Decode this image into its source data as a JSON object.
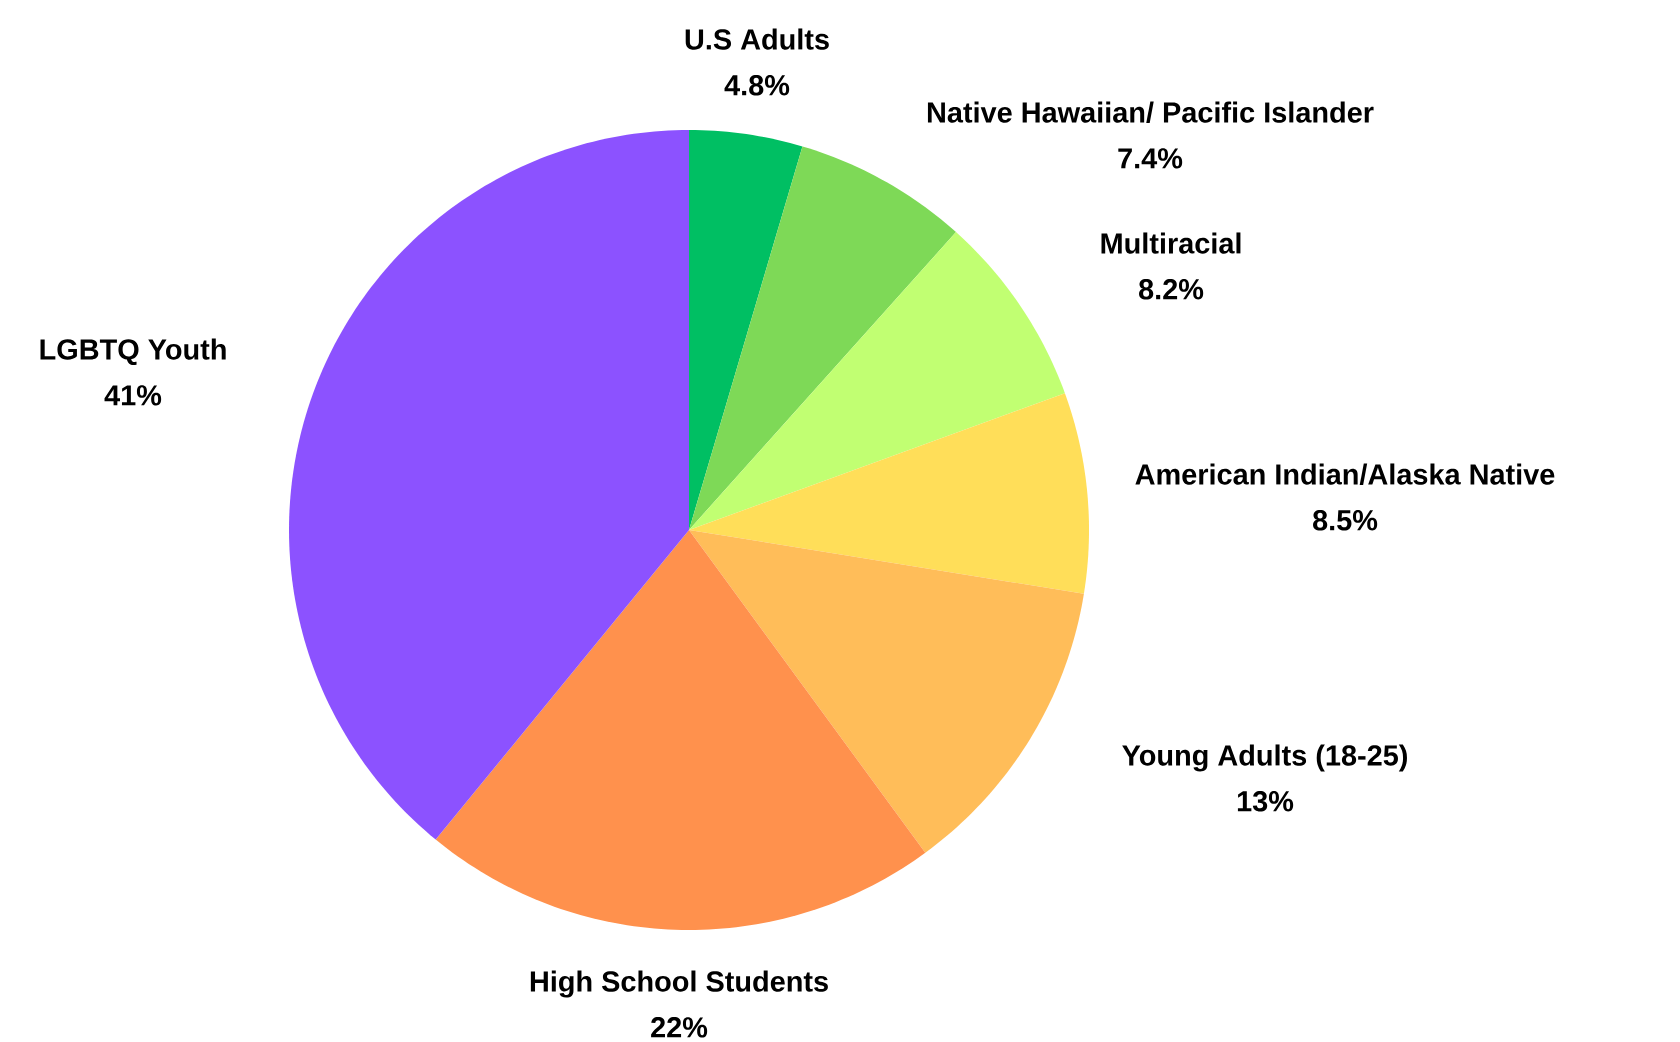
{
  "chart_data": {
    "type": "pie",
    "categories": [
      "U.S Adults",
      "Native Hawaiian/ Pacific Islander",
      "Multiracial",
      "American Indian/Alaska Native",
      "Young Adults (18-25)",
      "High School Students",
      "LGBTQ Youth"
    ],
    "values": [
      4.8,
      7.4,
      8.2,
      8.5,
      13,
      22,
      41
    ],
    "value_labels": [
      "4.8%",
      "7.4%",
      "8.2%",
      "8.5%",
      "13%",
      "22%",
      "41%"
    ],
    "colors": [
      "#00bf63",
      "#7ed957",
      "#c1ff72",
      "#ffde59",
      "#ffbd59",
      "#ff914d",
      "#8c52ff"
    ]
  }
}
